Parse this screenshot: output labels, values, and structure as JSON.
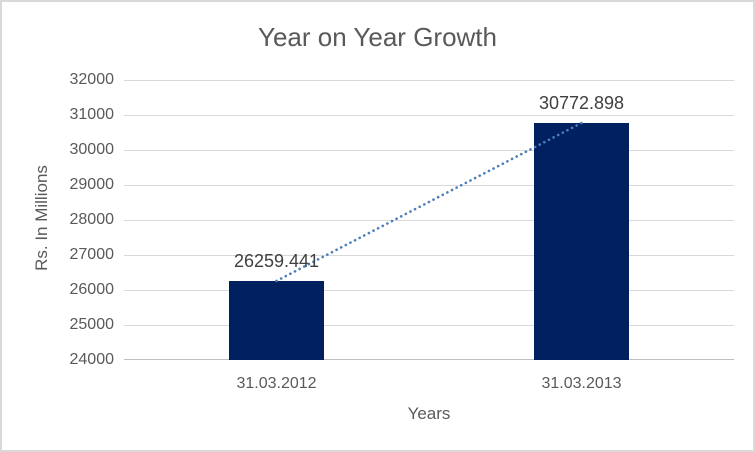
{
  "chart_data": {
    "type": "bar",
    "title": "Year on Year Growth",
    "xlabel": "Years",
    "ylabel": "Rs. In Millions",
    "categories": [
      "31.03.2012",
      "31.03.2013"
    ],
    "values": [
      26259.441,
      30772.898
    ],
    "data_labels": [
      "26259.441",
      "30772.898"
    ],
    "ylim": [
      24000,
      32000
    ],
    "ytick_step": 1000,
    "yticks": [
      24000,
      25000,
      26000,
      27000,
      28000,
      29000,
      30000,
      31000,
      32000
    ],
    "grid": true,
    "legend": "none",
    "trendline": true,
    "colors": {
      "bar": "#002060",
      "trendline": "#4A7EBB",
      "gridline": "#D9D9D9",
      "axis_line": "#BFBFBF",
      "text": "#595959",
      "data_label_text": "#404040",
      "border": "#D9D9D9",
      "background": "#FFFFFF"
    }
  }
}
